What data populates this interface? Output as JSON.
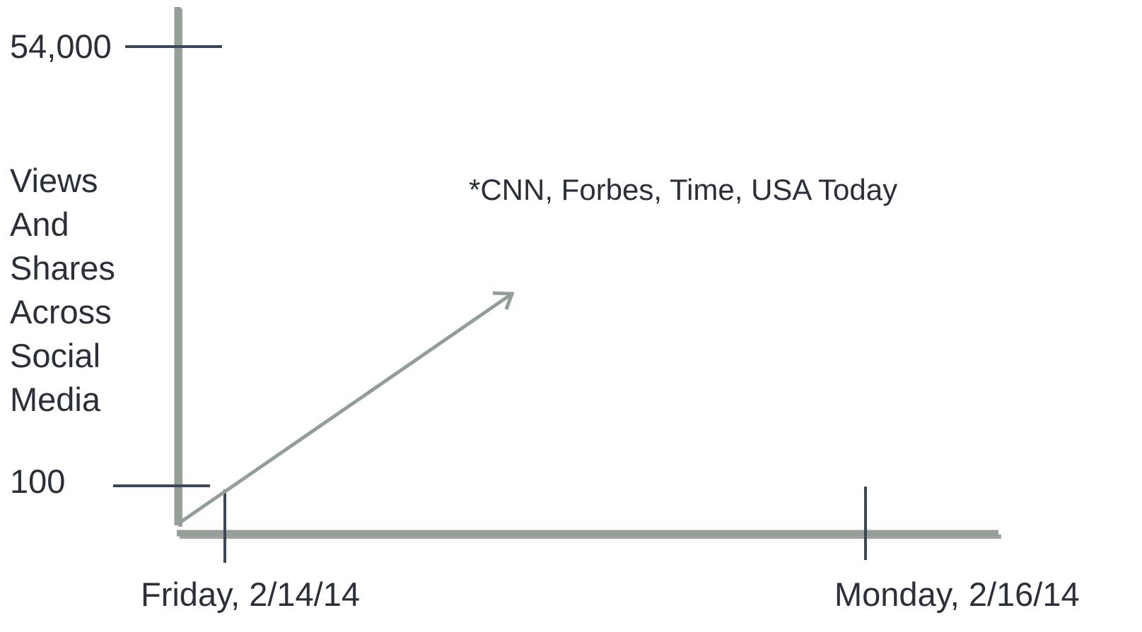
{
  "chart_data": {
    "type": "line",
    "title": "",
    "ylabel_lines": [
      "Views",
      "And",
      "Shares",
      "Across",
      "Social",
      "Media"
    ],
    "y_ticks": [
      "54,000",
      "100"
    ],
    "x_ticks": [
      "Friday, 2/14/14",
      "Monday, 2/16/14"
    ],
    "annotation": "*CNN, Forbes, Time, USA Today",
    "trend": "increasing (arrow)",
    "grid": false,
    "legend": "none",
    "colors": {
      "axis": "#939e97",
      "tick": "#3c4656",
      "arrow": "#939e97",
      "text": "#2b2f3a"
    }
  }
}
